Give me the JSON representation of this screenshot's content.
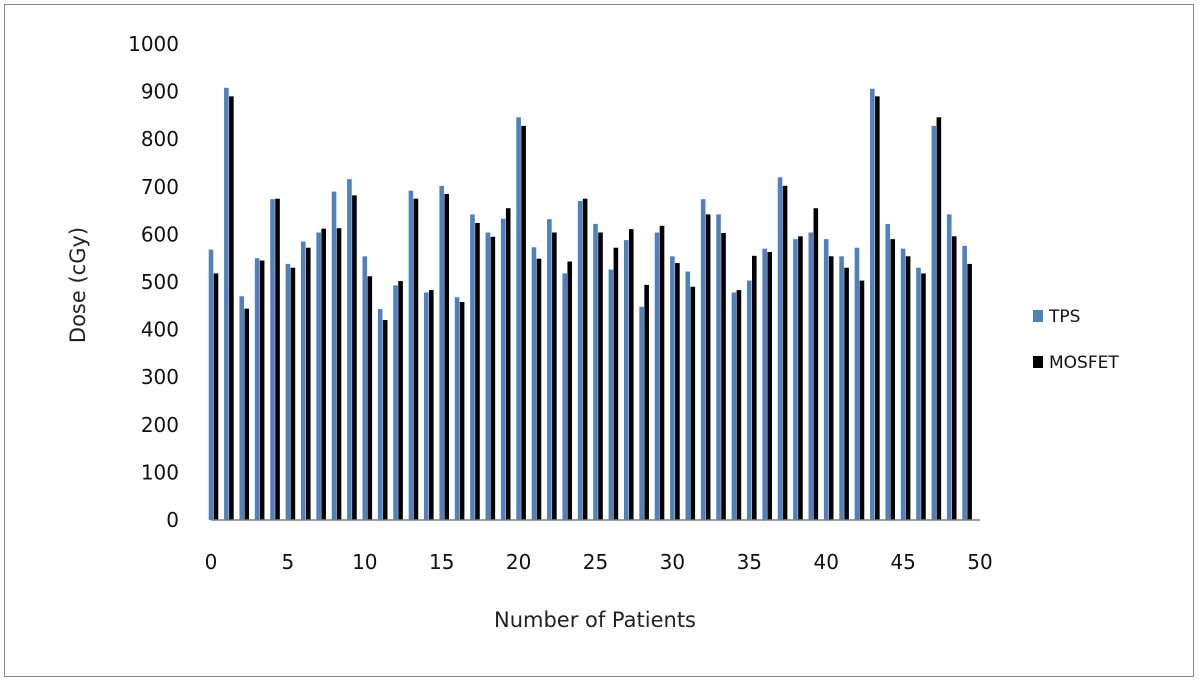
{
  "chart_data": {
    "type": "bar",
    "title": "",
    "xlabel": "Number of Patients",
    "ylabel": "Dose (cGy)",
    "ylim": [
      0,
      1000
    ],
    "xlim": [
      0,
      50
    ],
    "yticks": [
      0,
      100,
      200,
      300,
      400,
      500,
      600,
      700,
      800,
      900,
      1000
    ],
    "xticks": [
      0,
      5,
      10,
      15,
      20,
      25,
      30,
      35,
      40,
      45,
      50
    ],
    "legend_position": "right",
    "grid": false,
    "x": [
      0,
      1,
      2,
      3,
      4,
      5,
      6,
      7,
      8,
      9,
      10,
      11,
      12,
      13,
      14,
      15,
      16,
      17,
      18,
      19,
      20,
      21,
      22,
      23,
      24,
      25,
      26,
      27,
      28,
      29,
      30,
      31,
      32,
      33,
      34,
      35,
      36,
      37,
      38,
      39,
      40,
      41,
      42,
      43,
      44,
      45,
      46,
      47,
      48,
      49
    ],
    "series": [
      {
        "name": "TPS",
        "color": "#4F81BD",
        "values": [
          568,
          908,
          470,
          550,
          674,
          538,
          585,
          604,
          690,
          716,
          554,
          443,
          493,
          692,
          478,
          702,
          468,
          642,
          604,
          633,
          846,
          573,
          632,
          518,
          670,
          622,
          526,
          588,
          448,
          604,
          554,
          522,
          674,
          642,
          478,
          503,
          570,
          720,
          590,
          604,
          590,
          554,
          572,
          906,
          622,
          570,
          530,
          828,
          642,
          576
        ]
      },
      {
        "name": "MOSFET",
        "color": "#000000",
        "values": [
          518,
          890,
          444,
          545,
          675,
          530,
          572,
          612,
          613,
          682,
          512,
          420,
          502,
          675,
          483,
          685,
          458,
          624,
          595,
          655,
          828,
          549,
          604,
          543,
          675,
          604,
          572,
          611,
          494,
          618,
          540,
          490,
          642,
          603,
          483,
          555,
          563,
          702,
          596,
          655,
          554,
          530,
          503,
          890,
          590,
          554,
          518,
          846,
          596,
          538
        ]
      }
    ]
  }
}
